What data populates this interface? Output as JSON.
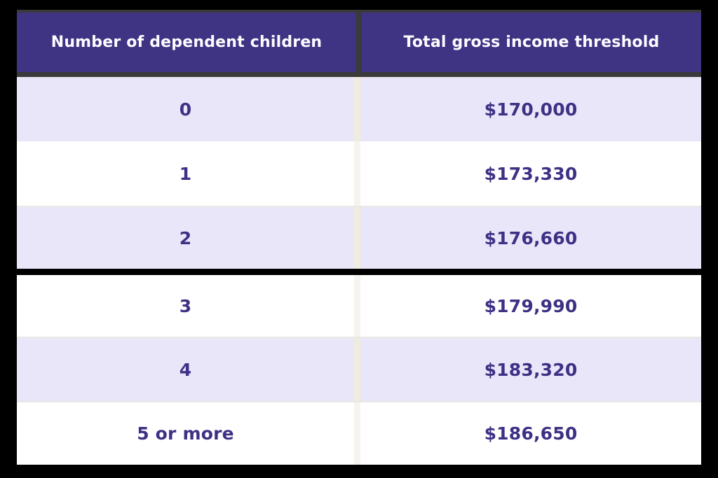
{
  "chart_data": {
    "type": "table",
    "columns": [
      "Number of dependent children",
      "Total gross income threshold"
    ],
    "rows": [
      [
        "0",
        "$170,000"
      ],
      [
        "1",
        "$173,330"
      ],
      [
        "2",
        "$176,660"
      ],
      [
        "3",
        "$179,990"
      ],
      [
        "4",
        "$183,320"
      ],
      [
        "5 or more",
        "$186,650"
      ]
    ]
  },
  "colors": {
    "canvas_background": "#000000",
    "frame": "#3a3a3a",
    "header_background": "#3f3384",
    "header_text": "#fdfcff",
    "row_background": "#ffffff",
    "row_alt_background": "#eae6f9",
    "value_text": "#3d3185",
    "column_divider": "#efecdf",
    "section_divider": "#000000"
  }
}
